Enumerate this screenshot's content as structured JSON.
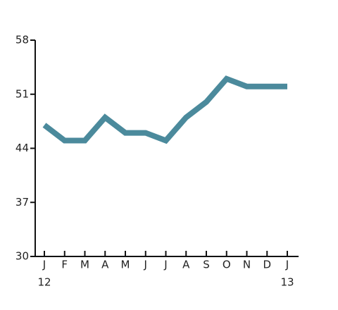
{
  "chart_data": {
    "type": "line",
    "categories": [
      "J",
      "F",
      "M",
      "A",
      "M",
      "J",
      "J",
      "A",
      "S",
      "O",
      "N",
      "D",
      "J"
    ],
    "category_years": [
      "12",
      null,
      null,
      null,
      null,
      null,
      null,
      null,
      null,
      null,
      null,
      null,
      "13"
    ],
    "series": [
      {
        "color": "#4b8a9c",
        "values": [
          47,
          45,
          45,
          48,
          46,
          46,
          45,
          48,
          50,
          53,
          52,
          52,
          52
        ]
      }
    ],
    "ylim": [
      30,
      58
    ],
    "yticks": [
      30,
      37,
      44,
      51,
      58
    ]
  }
}
